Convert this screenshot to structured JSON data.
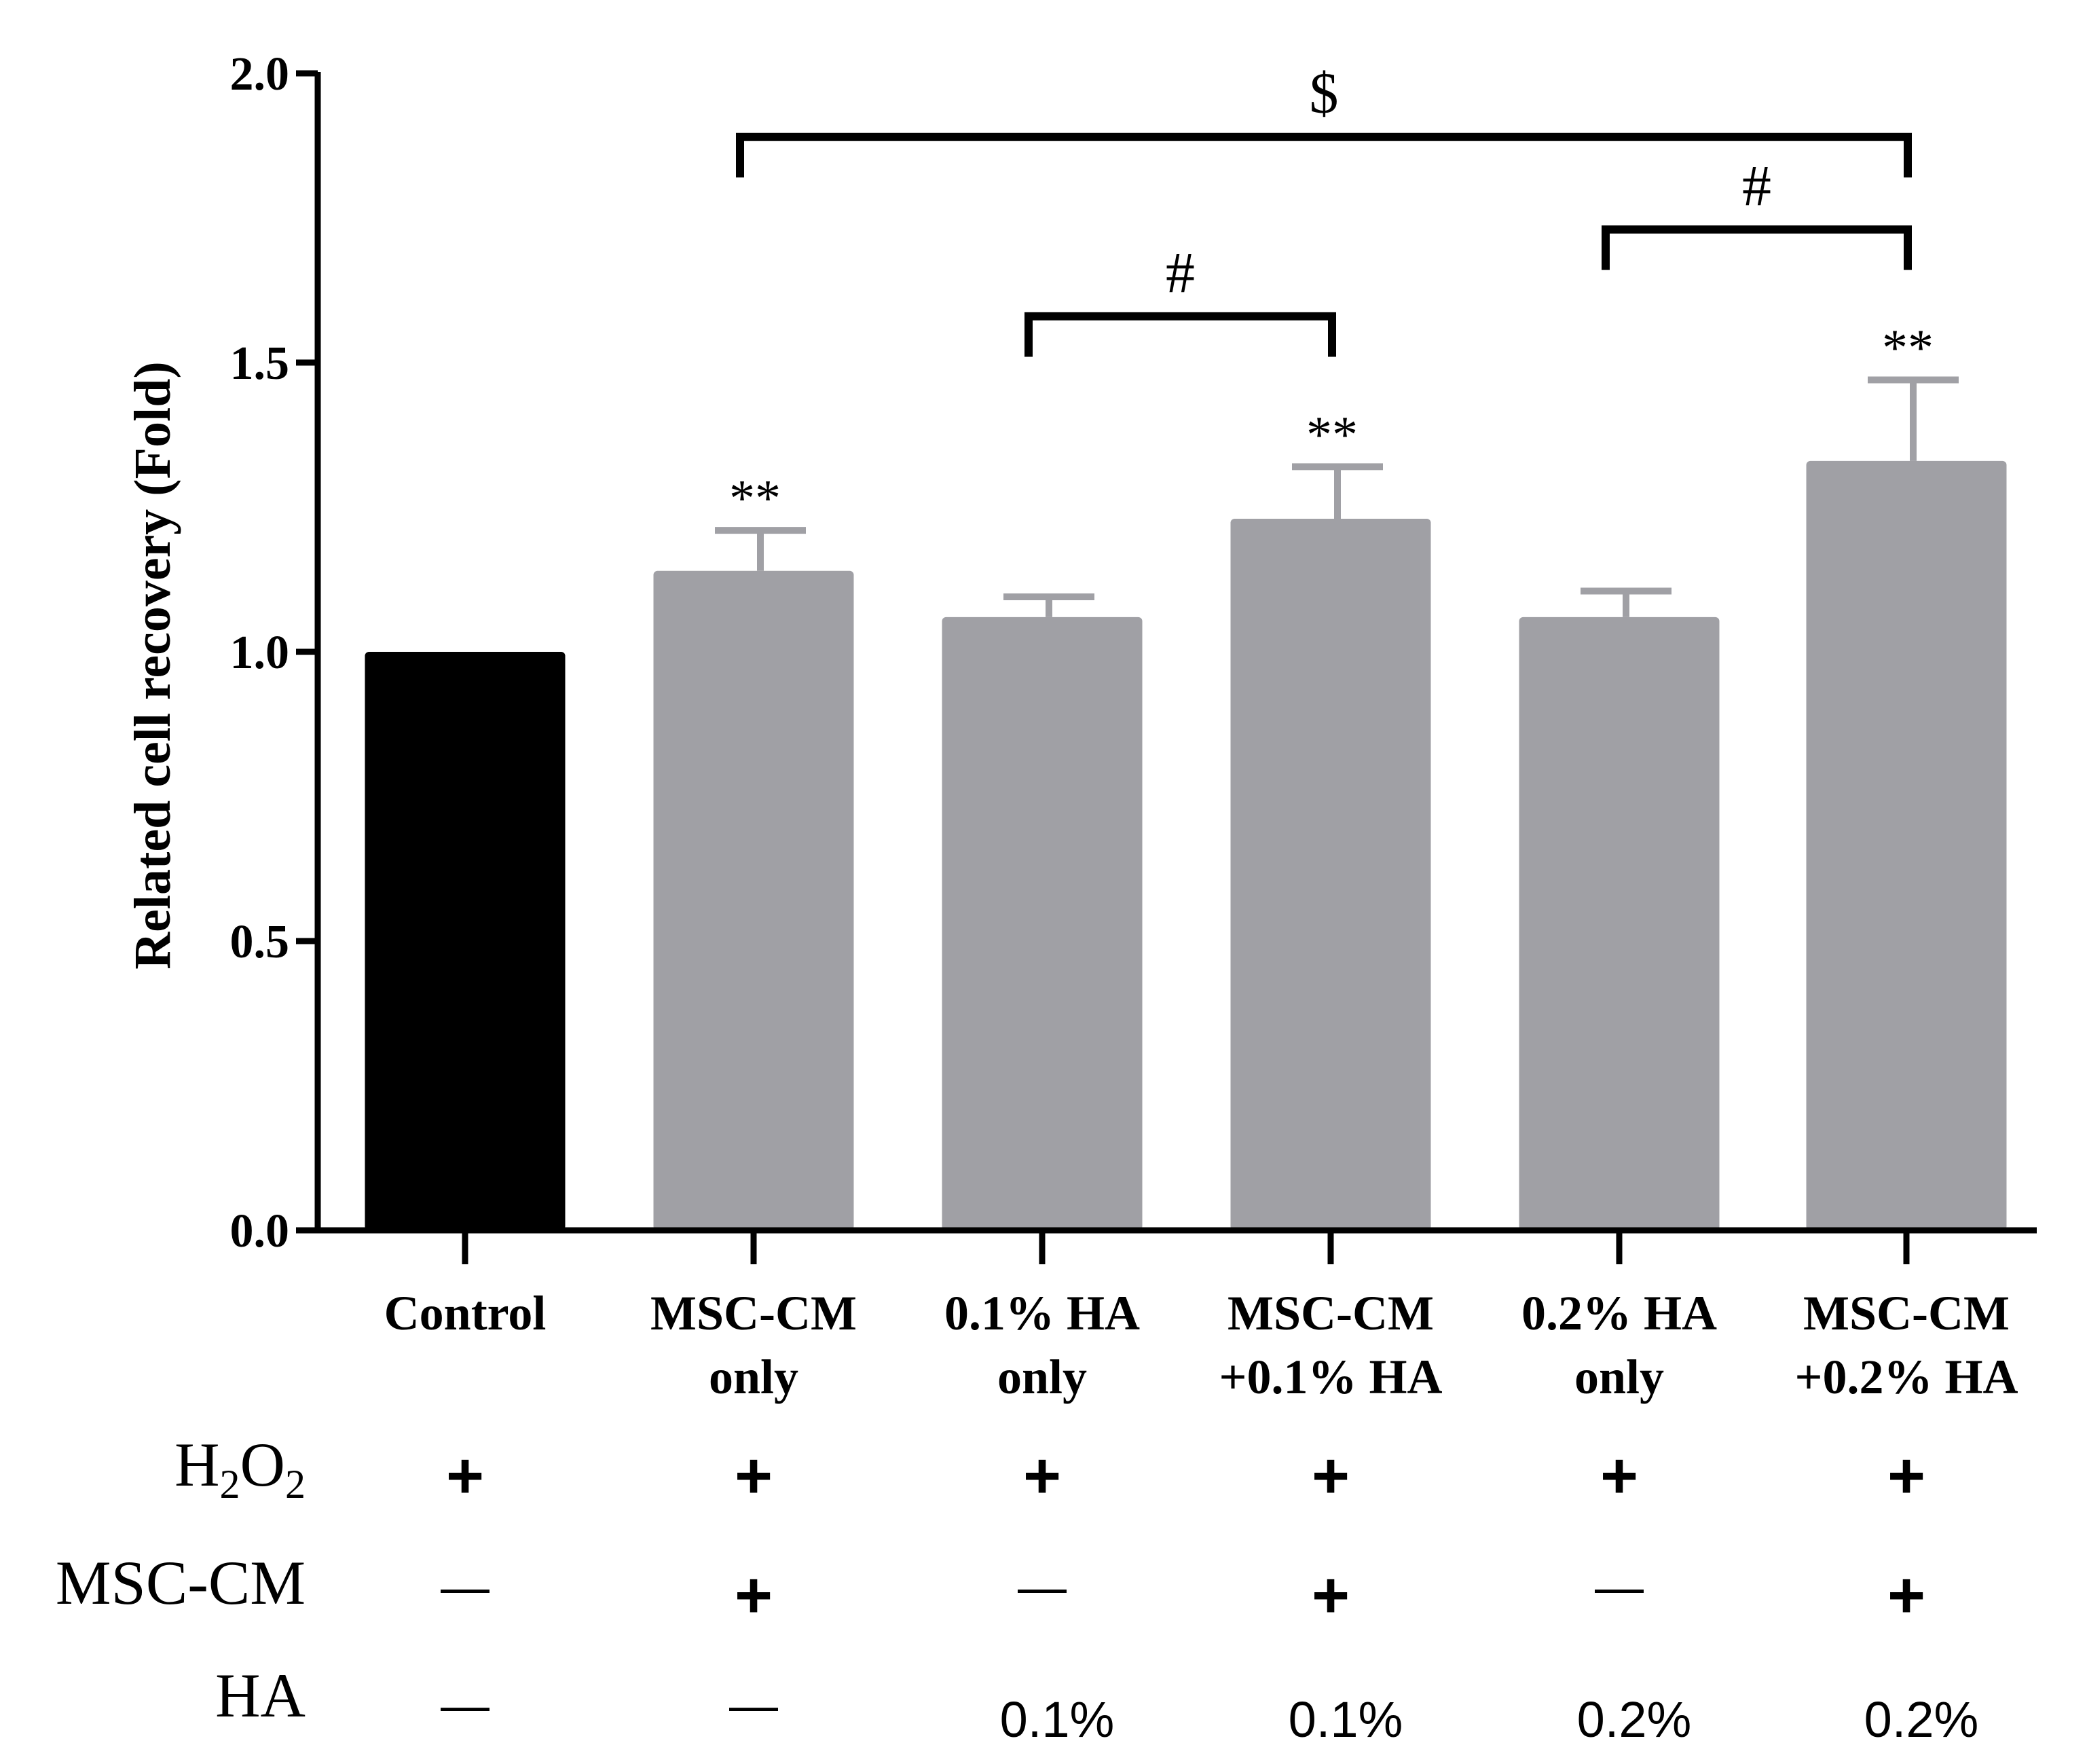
{
  "chart_data": {
    "type": "bar",
    "ylabel": "Related cell recovery (Fold)",
    "ylim": [
      0,
      2.0
    ],
    "yticks": [
      "0.0",
      "0.5",
      "1.0",
      "1.5",
      "2.0"
    ],
    "ytick_values": [
      0,
      0.5,
      1.0,
      1.5,
      2.0
    ],
    "categories": [
      {
        "line1": "Control",
        "line2": ""
      },
      {
        "line1": "MSC-CM",
        "line2": "only"
      },
      {
        "line1": "0.1% HA",
        "line2": "only"
      },
      {
        "line1": "MSC-CM",
        "line2": "+0.1% HA"
      },
      {
        "line1": "0.2% HA",
        "line2": "only"
      },
      {
        "line1": "MSC-CM",
        "line2": "+0.2% HA"
      }
    ],
    "values": [
      1.0,
      1.14,
      1.06,
      1.23,
      1.06,
      1.33
    ],
    "errors": [
      0,
      0.07,
      0.035,
      0.09,
      0.045,
      0.14
    ],
    "significance": [
      "",
      "**",
      "",
      "**",
      "",
      "**"
    ],
    "colors": [
      "#000000",
      "#a0a0a5",
      "#a0a0a5",
      "#a0a0a5",
      "#a0a0a5",
      "#a0a0a5"
    ],
    "brackets": [
      {
        "from": 1,
        "to": 5,
        "label": "$",
        "y_top": 1.89,
        "y_left_end": 1.82,
        "y_right_end": 1.82
      },
      {
        "from": 2,
        "to": 3,
        "label": "#",
        "y_top": 1.58,
        "y_left_end": 1.51,
        "y_right_end": 1.51
      },
      {
        "from": 4,
        "to": 5,
        "label": "#",
        "y_top": 1.73,
        "y_left_end": 1.66,
        "y_right_end": 1.66
      }
    ]
  },
  "treatment_table": {
    "rows": [
      {
        "label": "H2O2",
        "label_main": "H",
        "label_sub1": "2",
        "label_mid": "O",
        "label_sub2": "2",
        "cells": [
          "+",
          "+",
          "+",
          "+",
          "+",
          "+"
        ]
      },
      {
        "label": "MSC-CM",
        "cells": [
          "—",
          "+",
          "—",
          "+",
          "—",
          "+"
        ]
      },
      {
        "label": "HA",
        "cells": [
          "—",
          "—",
          "0.1%",
          "0.1%",
          "0.2%",
          "0.2%"
        ]
      }
    ]
  }
}
